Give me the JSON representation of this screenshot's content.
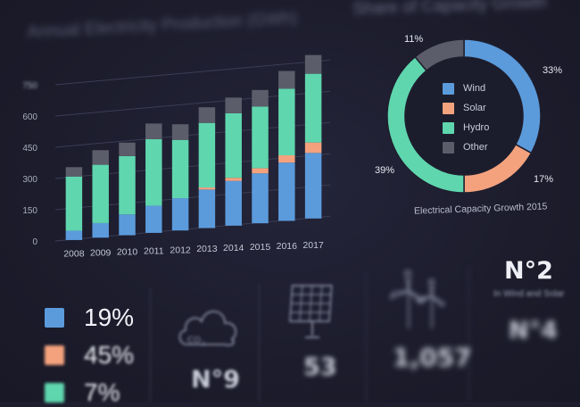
{
  "bar_chart": {
    "title": "Annual Electricity Production (GWh)"
  },
  "donut_chart": {
    "title": "Share of Capacity Growth",
    "caption": "Electrical Capacity Growth 2015",
    "legend": [
      {
        "label": "Wind",
        "color": "#5b9bdc"
      },
      {
        "label": "Solar",
        "color": "#f4a27e"
      },
      {
        "label": "Hydro",
        "color": "#5fd6ae"
      },
      {
        "label": "Other",
        "color": "#5c5d6a"
      }
    ],
    "percent_labels": {
      "wind": "33%",
      "solar": "17%",
      "hydro": "39%",
      "other": "11%"
    }
  },
  "chart_data": [
    {
      "type": "bar",
      "title": "Annual Electricity Production (GWh)",
      "stacked": true,
      "categories": [
        "2008",
        "2009",
        "2010",
        "2011",
        "2012",
        "2013",
        "2014",
        "2015",
        "2016",
        "2017"
      ],
      "series": [
        {
          "color": "#5b9bdc",
          "values": [
            45,
            70,
            100,
            130,
            155,
            185,
            215,
            240,
            280,
            315
          ]
        },
        {
          "color": "#f4a27e",
          "values": [
            0,
            0,
            0,
            0,
            0,
            10,
            15,
            25,
            35,
            50
          ]
        },
        {
          "color": "#5fd6ae",
          "values": [
            260,
            280,
            280,
            320,
            280,
            310,
            310,
            295,
            320,
            330
          ]
        },
        {
          "color": "#5c5d6a",
          "values": [
            45,
            70,
            65,
            75,
            75,
            75,
            75,
            80,
            85,
            90
          ]
        }
      ],
      "yticks": [
        "0",
        "150",
        "300",
        "450",
        "600",
        "750"
      ],
      "ylim": [
        0,
        750
      ]
    },
    {
      "type": "pie",
      "title": "Share of Capacity Growth",
      "labels": [
        "Wind",
        "Solar",
        "Hydro",
        "Other"
      ],
      "values": [
        33,
        17,
        39,
        11
      ],
      "colors": [
        "#5b9bdc",
        "#f4a27e",
        "#5fd6ae",
        "#5c5d6a"
      ]
    }
  ],
  "stats_legend": [
    {
      "pct": "19%",
      "color": "#5b9bdc"
    },
    {
      "pct": "45%",
      "color": "#f4a27e"
    },
    {
      "pct": "7%",
      "color": "#5fd6ae"
    }
  ],
  "stats": {
    "co2_label": "CO",
    "co2_sub": "2",
    "co2_rank": "N°9",
    "solar_value": "53",
    "wind_value": "1,057",
    "rank_title": "N°2",
    "rank_sub": "In Wind and Solar",
    "rank_bottom": "N°4"
  }
}
